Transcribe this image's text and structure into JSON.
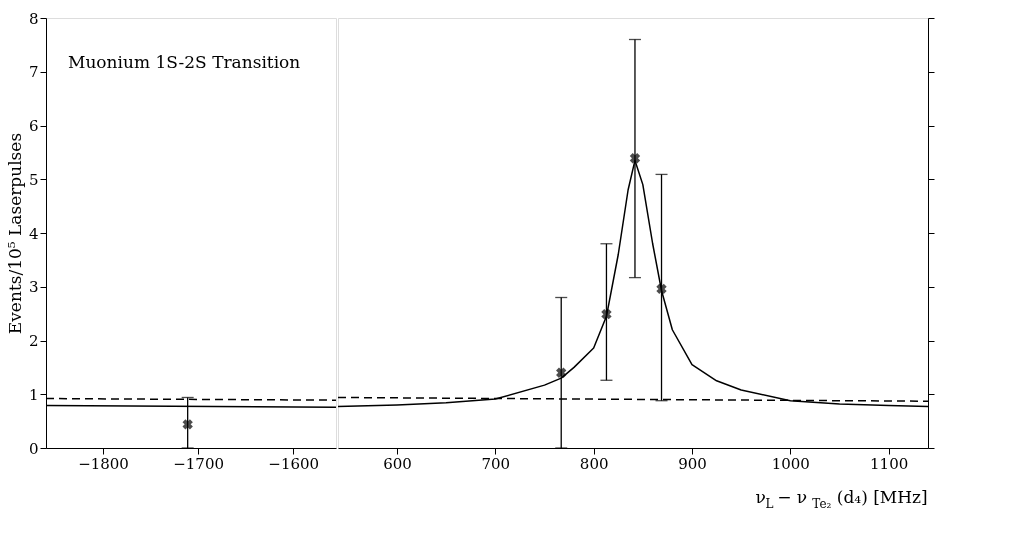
{
  "chart_data": [
    {
      "type": "scatter",
      "xlim": [
        -1860,
        -1555
      ],
      "xticks": [
        -1800,
        -1700,
        -1600
      ],
      "ylim": [
        0,
        8
      ],
      "yticks": [
        0,
        1,
        2,
        3,
        4,
        5,
        6,
        7,
        8
      ],
      "ylabel": "Events/10⁵ Laserpulses",
      "annotations": [
        "Muonium 1S-2S Transition"
      ],
      "grid": false,
      "series": [
        {
          "color": "#000000",
          "marker": "cross",
          "x": [
            -1711
          ],
          "values": [
            0.44
          ],
          "errors": [
            [
              0,
              0.94
            ]
          ]
        },
        {
          "type": "line",
          "color": "#000000",
          "x": [
            -1860,
            -1555
          ],
          "values": [
            0.79,
            0.76
          ]
        },
        {
          "type": "line",
          "color": "#000000",
          "line_style": "dashed",
          "x": [
            -1860,
            -1555
          ],
          "values": [
            0.92,
            0.89
          ]
        }
      ]
    },
    {
      "type": "scatter",
      "xlim": [
        540,
        1140
      ],
      "xticks": [
        600,
        700,
        800,
        900,
        1000,
        1100
      ],
      "ylim": [
        0,
        8
      ],
      "yticks": [
        0,
        1,
        2,
        3,
        4,
        5,
        6,
        7,
        8
      ],
      "tick_labels": "x",
      "xlabel": "ν$_{L}$ − ν$_{Te₂}$(d₄) [MHz]",
      "grid": false,
      "series": [
        {
          "color": "#000000",
          "marker": "cross",
          "x": [
            767,
            813,
            842,
            869
          ],
          "values": [
            1.4,
            2.49,
            5.39,
            2.96
          ],
          "errors": [
            [
              0,
              2.8
            ],
            [
              1.26,
              3.8
            ],
            [
              3.17,
              7.6
            ],
            [
              0.88,
              5.09
            ]
          ]
        },
        {
          "type": "line",
          "color": "#000000",
          "x": [
            540,
            600,
            650,
            700,
            750,
            767,
            780,
            800,
            813,
            825,
            835,
            842,
            850,
            860,
            869,
            880,
            900,
            925,
            950,
            1000,
            1050,
            1100,
            1140
          ],
          "values": [
            0.77,
            0.8,
            0.84,
            0.91,
            1.17,
            1.3,
            1.5,
            1.86,
            2.45,
            3.6,
            4.8,
            5.35,
            4.9,
            3.8,
            2.93,
            2.2,
            1.55,
            1.25,
            1.08,
            0.88,
            0.82,
            0.79,
            0.77
          ]
        },
        {
          "type": "line",
          "color": "#000000",
          "line_style": "dashed",
          "x": [
            540,
            1140
          ],
          "values": [
            0.94,
            0.87
          ]
        }
      ]
    }
  ]
}
